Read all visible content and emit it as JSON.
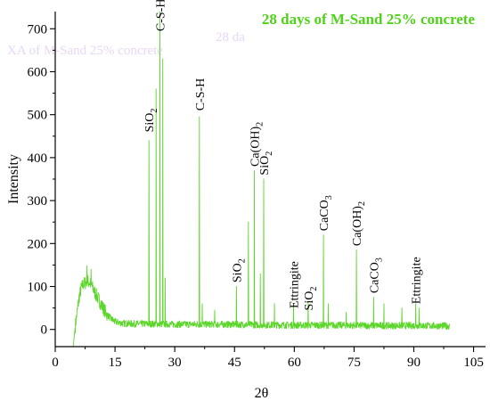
{
  "chart_data": {
    "type": "line",
    "title": "28 days of M-Sand 25% concrete",
    "ghost_texts": [
      "XA of M-Sand 25% concrete",
      "28 da"
    ],
    "xlabel": "2θ",
    "ylabel": "Intensity",
    "xlim": [
      0,
      108
    ],
    "ylim": [
      -40,
      740
    ],
    "xticks": [
      0,
      15,
      30,
      45,
      60,
      75,
      90,
      105
    ],
    "yticks": [
      0,
      100,
      200,
      300,
      400,
      500,
      600,
      700
    ],
    "grid": false,
    "colors": {
      "trace": "#5dd62c",
      "title": "#4fd21a",
      "ghost": "#e7d8f5",
      "axis": "#000000"
    },
    "series": [
      {
        "baseline": [
          [
            4.5,
            -40
          ],
          [
            5,
            5
          ],
          [
            5.5,
            40
          ],
          [
            6,
            75
          ],
          [
            6.5,
            95
          ],
          [
            7,
            105
          ],
          [
            7.5,
            108
          ],
          [
            8,
            112
          ],
          [
            8.5,
            110
          ],
          [
            9,
            105
          ],
          [
            9.5,
            95
          ],
          [
            10,
            85
          ],
          [
            11,
            68
          ],
          [
            12,
            50
          ],
          [
            13,
            35
          ],
          [
            14,
            25
          ],
          [
            15,
            18
          ],
          [
            17,
            14
          ],
          [
            20,
            13
          ],
          [
            25,
            13
          ],
          [
            30,
            12
          ],
          [
            40,
            12
          ],
          [
            50,
            11
          ],
          [
            60,
            10
          ],
          [
            70,
            10
          ],
          [
            80,
            9
          ],
          [
            90,
            9
          ],
          [
            99,
            8
          ]
        ],
        "peaks": [
          [
            8,
            148
          ],
          [
            9,
            140
          ],
          [
            23.5,
            440
          ],
          [
            25.3,
            560
          ],
          [
            26.3,
            740
          ],
          [
            27,
            630
          ],
          [
            27.6,
            120
          ],
          [
            36.2,
            495
          ],
          [
            36.9,
            60
          ],
          [
            40,
            45
          ],
          [
            45.5,
            100
          ],
          [
            48.5,
            250
          ],
          [
            50,
            370
          ],
          [
            51.5,
            130
          ],
          [
            52.3,
            350
          ],
          [
            55,
            60
          ],
          [
            59.8,
            60
          ],
          [
            63.5,
            65
          ],
          [
            67.3,
            220
          ],
          [
            68.5,
            60
          ],
          [
            73,
            40
          ],
          [
            75.6,
            185
          ],
          [
            79.9,
            75
          ],
          [
            82.5,
            60
          ],
          [
            87,
            50
          ],
          [
            90.5,
            60
          ],
          [
            91.3,
            50
          ]
        ]
      }
    ],
    "annotations": [
      {
        "main": "C-S-H",
        "x": 26.3,
        "y": 690
      },
      {
        "main": "SiO",
        "sub": "2",
        "x": 23.5,
        "y": 455
      },
      {
        "main": "C-S-H",
        "x": 36.2,
        "y": 505
      },
      {
        "main": "SiO",
        "sub": "2",
        "x": 45.5,
        "y": 105
      },
      {
        "main": "Ca(OH)",
        "sub": "2",
        "x": 50,
        "y": 375
      },
      {
        "main": "SiO",
        "sub": "2",
        "x": 52.3,
        "y": 355
      },
      {
        "main": "Ettringite",
        "x": 59.8,
        "y": 45
      },
      {
        "main": "SiO",
        "sub": "2",
        "x": 63.5,
        "y": 40
      },
      {
        "main": "CaCO",
        "sub": "3",
        "x": 67.3,
        "y": 225
      },
      {
        "main": "Ca(OH)",
        "sub": "2",
        "x": 75.6,
        "y": 190
      },
      {
        "main": "CaCO",
        "sub": "3",
        "x": 79.9,
        "y": 80
      },
      {
        "main": "Ettringite",
        "x": 90.5,
        "y": 55
      }
    ]
  }
}
